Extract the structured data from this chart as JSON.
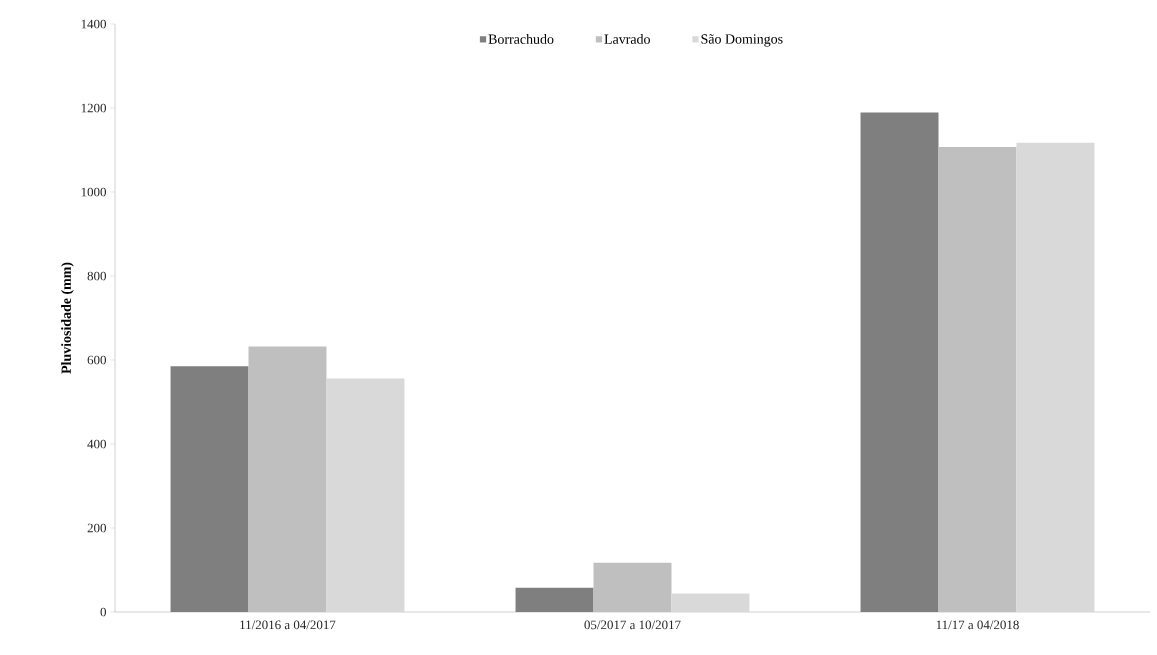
{
  "chart_data": {
    "type": "bar",
    "ylabel": "Pluviosidade  (mm)",
    "categories": [
      "11/2016 a 04/2017",
      "05/2017 a 10/2017",
      "11/17 a 04/2018"
    ],
    "series": [
      {
        "name": "Borrachudo",
        "color": "#7f7f7f",
        "values": [
          585,
          58,
          1189
        ]
      },
      {
        "name": "Lavrado",
        "color": "#bfbfbf",
        "values": [
          632,
          117,
          1107
        ]
      },
      {
        "name": "São Domingos",
        "color": "#d9d9d9",
        "values": [
          556,
          44,
          1117
        ]
      }
    ],
    "ylim": [
      0,
      1400
    ],
    "yticks": [
      0,
      200,
      400,
      600,
      800,
      1000,
      1200,
      1400
    ],
    "legend": "top",
    "grid": false
  }
}
